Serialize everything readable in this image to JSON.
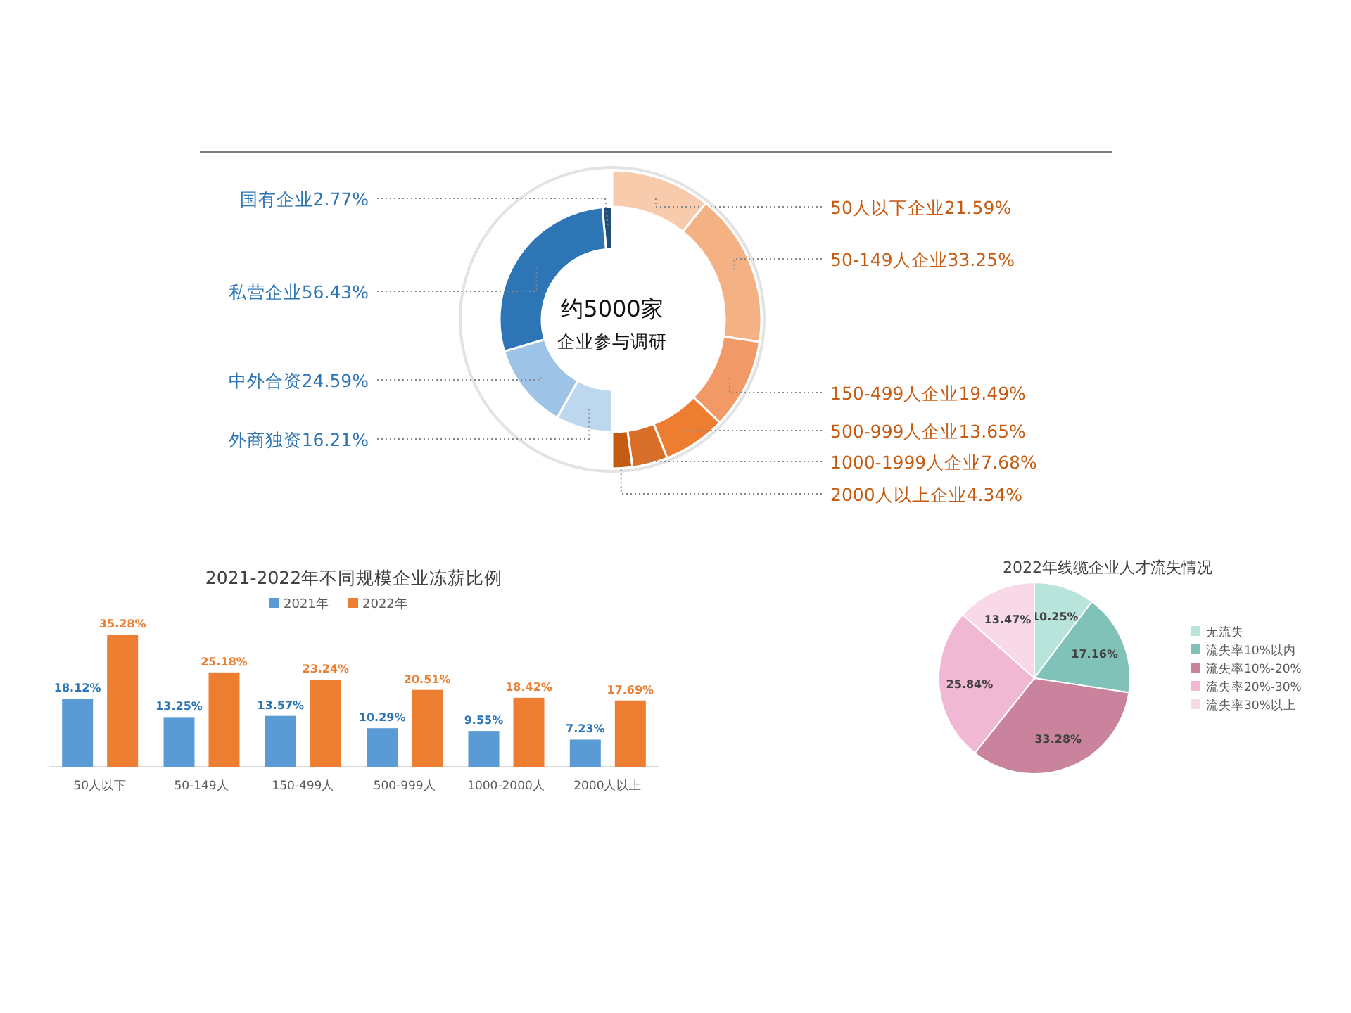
{
  "chart_data": [
    {
      "type": "donut",
      "categories": [
        "国有企业",
        "私营企业",
        "中外合资",
        "外商独资"
      ],
      "values": [
        2.77,
        56.43,
        24.59,
        16.21
      ],
      "value_labels": [
        "2.77%",
        "56.43%",
        "24.59%",
        "16.21%"
      ],
      "colors": [
        "#1f4e79",
        "#2e75b6",
        "#9dc3e6",
        "#bdd7ee"
      ],
      "annotations": [
        "约5000家",
        "企业参与调研"
      ]
    },
    {
      "type": "donut",
      "categories": [
        "50人以下企业",
        "50-149人企业",
        "150-499人企业",
        "500-999人企业",
        "1000-1999人企业",
        "2000人以上企业"
      ],
      "values": [
        21.59,
        33.25,
        19.49,
        13.65,
        7.68,
        4.34
      ],
      "value_labels": [
        "21.59%",
        "33.25%",
        "19.49%",
        "13.65%",
        "7.68%",
        "4.34%"
      ],
      "colors": [
        "#f8cbad",
        "#f4b183",
        "#f19a68",
        "#ed7d31",
        "#d86e28",
        "#c55a11"
      ]
    },
    {
      "type": "bar",
      "title": "2021-2022年不同规模企业冻薪比例",
      "categories": [
        "50人以下",
        "50-149人",
        "150-499人",
        "500-999人",
        "1000-2000人",
        "2000人以上"
      ],
      "series": [
        {
          "name": "2021年",
          "color": "#5b9bd5",
          "values": [
            18.12,
            13.25,
            13.57,
            10.29,
            9.55,
            7.23
          ],
          "value_labels": [
            "18.12%",
            "13.25%",
            "13.57%",
            "10.29%",
            "9.55%",
            "7.23%"
          ]
        },
        {
          "name": "2022年",
          "color": "#ed7d31",
          "values": [
            35.28,
            25.18,
            23.24,
            20.51,
            18.42,
            17.69
          ],
          "value_labels": [
            "35.28%",
            "25.18%",
            "23.24%",
            "20.51%",
            "18.42%",
            "17.69%"
          ]
        }
      ],
      "legend": "top"
    },
    {
      "type": "pie",
      "title": "2022年线缆企业人才流失情况",
      "categories": [
        "无流失",
        "流失率10%以内",
        "流失率10%-20%",
        "流失率20%-30%",
        "流失率30%以上"
      ],
      "values": [
        10.25,
        17.16,
        33.28,
        25.84,
        13.47
      ],
      "value_labels": [
        "10.25%",
        "17.16%",
        "33.28%",
        "25.84%",
        "13.47%"
      ],
      "colors": [
        "#b9e4dc",
        "#80c2b8",
        "#c9839d",
        "#f0b8d2",
        "#f9d9e8"
      ],
      "legend": "right"
    }
  ]
}
